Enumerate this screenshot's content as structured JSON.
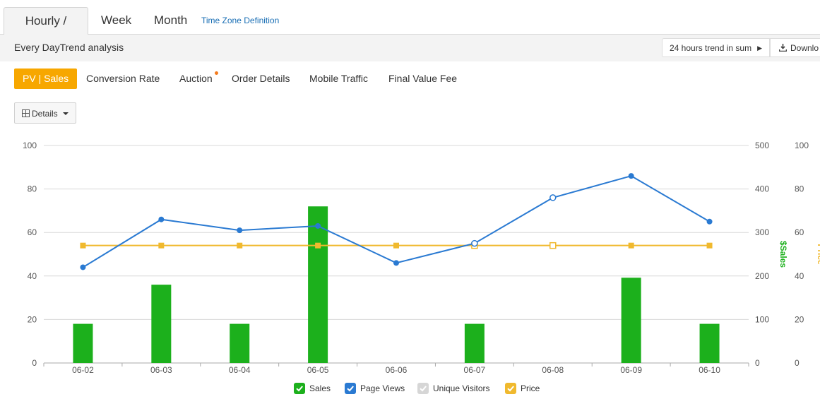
{
  "tabs": [
    {
      "label": "Hourly / Day",
      "active": true
    },
    {
      "label": "Week",
      "active": false
    },
    {
      "label": "Month",
      "active": false
    }
  ],
  "timezone_link": "Time Zone Definition",
  "subbar": {
    "title": "Every DayTrend analysis",
    "trend_button": "24 hours trend in sum",
    "download_button": "Downlo"
  },
  "metric_tabs": [
    {
      "label": "PV | Sales",
      "active": true
    },
    {
      "label": "Conversion Rate",
      "active": false
    },
    {
      "label": "Auction",
      "active": false
    },
    {
      "label": "Order Details",
      "active": false
    },
    {
      "label": "Mobile Traffic",
      "active": false
    },
    {
      "label": "Final Value Fee",
      "active": false
    }
  ],
  "details_button": "Details",
  "colors": {
    "sales": "#1cb01c",
    "page_views": "#2a7ad2",
    "unique_visitors": "#d6d6d6",
    "price": "#f0b92e",
    "accent": "#f7a700"
  },
  "chart_data": {
    "type": "bar",
    "categories": [
      "06-02",
      "06-03",
      "06-04",
      "06-05",
      "06-06",
      "06-07",
      "06-08",
      "06-09",
      "06-10"
    ],
    "series": [
      {
        "name": "Sales",
        "type": "bar",
        "axis": "right",
        "values": [
          90,
          180,
          90,
          360,
          0,
          90,
          0,
          196,
          90
        ]
      },
      {
        "name": "Page Views",
        "type": "line",
        "axis": "left",
        "values": [
          44,
          66,
          61,
          63,
          46,
          55,
          76,
          86,
          65
        ],
        "hollow": [
          false,
          false,
          false,
          false,
          false,
          true,
          true,
          false,
          false
        ]
      },
      {
        "name": "Price",
        "type": "line",
        "axis": "far-right",
        "values": [
          54,
          54,
          54,
          54,
          54,
          54,
          54,
          54,
          54
        ],
        "hollow": [
          false,
          false,
          false,
          false,
          false,
          true,
          true,
          false,
          false
        ]
      }
    ],
    "left_axis": {
      "ticks": [
        "100",
        "80",
        "60",
        "40",
        "20",
        "0"
      ],
      "ylim": [
        0,
        100
      ]
    },
    "right_axis": {
      "label": "$Sales",
      "ticks": [
        "500",
        "400",
        "300",
        "200",
        "100",
        "0"
      ],
      "ylim": [
        0,
        500
      ]
    },
    "far_right_axis": {
      "label": "Price",
      "ticks": [
        "100",
        "80",
        "60",
        "40",
        "20",
        "0"
      ],
      "ylim": [
        0,
        100
      ]
    },
    "legend": [
      {
        "label": "Sales",
        "checked": true,
        "color_key": "sales"
      },
      {
        "label": "Page Views",
        "checked": true,
        "color_key": "page_views"
      },
      {
        "label": "Unique Visitors",
        "checked": true,
        "color_key": "unique_visitors"
      },
      {
        "label": "Price",
        "checked": true,
        "color_key": "price"
      }
    ],
    "legend_position": "bottom",
    "grid": true
  }
}
